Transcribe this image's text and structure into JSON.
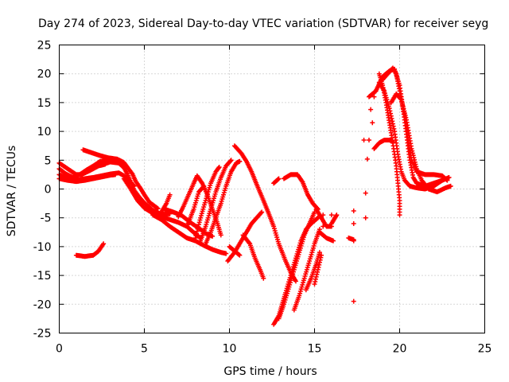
{
  "chart_data": {
    "type": "scatter",
    "title": "Day 274 of 2023, Sidereal Day-to-day VTEC variation (SDTVAR) for receiver seyg",
    "xlabel": "GPS time / hours",
    "ylabel": "SDTVAR / TECUs",
    "xlim": [
      0,
      25
    ],
    "ylim": [
      -25,
      25
    ],
    "xticks": [
      0,
      5,
      10,
      15,
      20,
      25
    ],
    "yticks": [
      -25,
      -20,
      -15,
      -10,
      -5,
      0,
      5,
      10,
      15,
      20,
      25
    ],
    "grid": true,
    "marker": "plus",
    "color": "#ff0000",
    "series_tracks": [
      [
        [
          0.0,
          4.5
        ],
        [
          0.5,
          3.5
        ],
        [
          1.0,
          2.5
        ],
        [
          1.3,
          2.5
        ],
        [
          1.8,
          3.2
        ],
        [
          2.3,
          4.0
        ],
        [
          2.7,
          4.3
        ]
      ],
      [
        [
          0.0,
          3.5
        ],
        [
          0.4,
          2.6
        ],
        [
          0.8,
          2.0
        ],
        [
          1.2,
          2.5
        ],
        [
          1.6,
          3.3
        ],
        [
          2.0,
          4.0
        ],
        [
          2.4,
          4.8
        ],
        [
          2.9,
          5.0
        ],
        [
          3.4,
          4.6
        ]
      ],
      [
        [
          1.4,
          6.8
        ],
        [
          1.9,
          6.3
        ],
        [
          2.4,
          5.8
        ],
        [
          2.9,
          5.4
        ],
        [
          3.4,
          5.2
        ],
        [
          3.8,
          4.6
        ],
        [
          4.0,
          3.8
        ],
        [
          4.3,
          2.6
        ],
        [
          4.5,
          1.3
        ],
        [
          4.8,
          0.0
        ],
        [
          5.0,
          -1.0
        ],
        [
          5.3,
          -2.3
        ],
        [
          5.8,
          -3.4
        ]
      ],
      [
        [
          0.0,
          2.5
        ],
        [
          0.5,
          1.8
        ],
        [
          1.0,
          1.5
        ],
        [
          1.5,
          1.8
        ],
        [
          2.0,
          2.0
        ],
        [
          2.5,
          2.3
        ],
        [
          3.0,
          2.6
        ],
        [
          3.5,
          2.8
        ],
        [
          3.8,
          2.3
        ],
        [
          4.1,
          1.5
        ],
        [
          4.4,
          0.5
        ]
      ],
      [
        [
          2.5,
          4.2
        ],
        [
          3.0,
          4.7
        ],
        [
          3.5,
          4.5
        ],
        [
          3.8,
          3.7
        ],
        [
          4.0,
          2.6
        ],
        [
          4.2,
          1.2
        ],
        [
          4.4,
          -0.2
        ],
        [
          4.7,
          -1.4
        ],
        [
          5.0,
          -2.4
        ],
        [
          5.5,
          -3.7
        ],
        [
          6.0,
          -4.4
        ],
        [
          6.5,
          -4.3
        ]
      ],
      [
        [
          0.0,
          1.8
        ],
        [
          0.5,
          1.5
        ],
        [
          1.0,
          1.3
        ],
        [
          1.5,
          1.5
        ],
        [
          2.0,
          1.8
        ],
        [
          2.5,
          2.1
        ],
        [
          3.0,
          2.4
        ],
        [
          3.3,
          2.5
        ]
      ],
      [
        [
          3.8,
          1.8
        ],
        [
          4.2,
          0.0
        ],
        [
          4.6,
          -2.0
        ],
        [
          5.0,
          -3.3
        ],
        [
          5.5,
          -4.2
        ],
        [
          6.0,
          -4.8
        ],
        [
          6.5,
          -5.3
        ],
        [
          7.0,
          -5.8
        ],
        [
          7.5,
          -6.5
        ],
        [
          8.0,
          -7.8
        ],
        [
          8.3,
          -8.5
        ]
      ],
      [
        [
          6.2,
          -3.5
        ],
        [
          6.7,
          -4.0
        ],
        [
          7.2,
          -4.6
        ],
        [
          7.7,
          -5.8
        ],
        [
          8.2,
          -6.8
        ],
        [
          8.6,
          -7.7
        ],
        [
          9.0,
          -8.2
        ]
      ],
      [
        [
          5.5,
          -4.5
        ],
        [
          6.0,
          -5.3
        ],
        [
          6.5,
          -6.5
        ],
        [
          7.0,
          -7.5
        ],
        [
          7.5,
          -8.5
        ],
        [
          8.0,
          -9.0
        ],
        [
          8.5,
          -9.8
        ],
        [
          9.0,
          -10.5
        ],
        [
          9.5,
          -11.0
        ],
        [
          9.8,
          -11.2
        ]
      ],
      [
        [
          6.0,
          -4.0
        ],
        [
          6.3,
          -2.5
        ],
        [
          6.5,
          -1.0
        ]
      ],
      [
        [
          1.0,
          -11.5
        ],
        [
          1.5,
          -11.7
        ],
        [
          2.0,
          -11.5
        ],
        [
          2.3,
          -10.8
        ],
        [
          2.6,
          -9.5
        ]
      ],
      [
        [
          7.0,
          -4.8
        ],
        [
          7.3,
          -3.0
        ],
        [
          7.6,
          -1.0
        ],
        [
          7.9,
          1.0
        ],
        [
          8.1,
          2.3
        ],
        [
          8.4,
          1.0
        ],
        [
          8.7,
          -1.0
        ],
        [
          9.0,
          -3.5
        ],
        [
          9.3,
          -6.0
        ],
        [
          9.5,
          -8.0
        ]
      ],
      [
        [
          7.5,
          -6.5
        ],
        [
          7.9,
          -3.5
        ],
        [
          8.2,
          -0.5
        ],
        [
          8.5,
          0.5
        ]
      ],
      [
        [
          8.0,
          -8.5
        ],
        [
          8.3,
          -5.0
        ],
        [
          8.6,
          -2.0
        ],
        [
          8.9,
          1.0
        ],
        [
          9.2,
          3.0
        ],
        [
          9.4,
          3.8
        ]
      ],
      [
        [
          8.3,
          -9.0
        ],
        [
          8.6,
          -6.5
        ],
        [
          8.9,
          -3.5
        ],
        [
          9.2,
          -0.5
        ],
        [
          9.5,
          2.0
        ],
        [
          9.8,
          4.0
        ],
        [
          10.1,
          5.0
        ]
      ],
      [
        [
          8.6,
          -9.5
        ],
        [
          8.9,
          -7.5
        ],
        [
          9.2,
          -5.0
        ],
        [
          9.5,
          -2.5
        ],
        [
          9.8,
          0.5
        ],
        [
          10.1,
          3.0
        ],
        [
          10.4,
          4.5
        ],
        [
          10.6,
          4.8
        ]
      ],
      [
        [
          10.3,
          7.5
        ],
        [
          10.7,
          6.2
        ],
        [
          11.0,
          4.8
        ],
        [
          11.3,
          3.0
        ],
        [
          11.6,
          0.8
        ],
        [
          12.0,
          -2.0
        ],
        [
          12.3,
          -4.2
        ],
        [
          12.6,
          -6.5
        ],
        [
          12.9,
          -9.5
        ],
        [
          13.3,
          -12.5
        ],
        [
          13.6,
          -14.5
        ],
        [
          13.9,
          -16.0
        ]
      ],
      [
        [
          9.9,
          -12.5
        ],
        [
          10.3,
          -11.0
        ],
        [
          10.6,
          -9.5
        ],
        [
          11.0,
          -7.5
        ],
        [
          11.3,
          -6.0
        ],
        [
          11.6,
          -5.0
        ],
        [
          11.9,
          -4.0
        ]
      ],
      [
        [
          10.8,
          -8.0
        ],
        [
          11.2,
          -9.5
        ],
        [
          11.5,
          -12.0
        ],
        [
          11.8,
          -14.0
        ],
        [
          12.0,
          -15.5
        ]
      ],
      [
        [
          10.0,
          -10.0
        ],
        [
          10.4,
          -11.0
        ],
        [
          10.6,
          -11.5
        ]
      ],
      [
        [
          12.6,
          -23.5
        ],
        [
          12.9,
          -22.0
        ],
        [
          13.1,
          -20.0
        ],
        [
          13.3,
          -18.0
        ],
        [
          13.6,
          -15.0
        ],
        [
          13.9,
          -12.0
        ],
        [
          14.2,
          -9.0
        ],
        [
          14.5,
          -7.0
        ],
        [
          14.8,
          -6.0
        ],
        [
          15.0,
          -5.5
        ],
        [
          15.2,
          -5.0
        ]
      ],
      [
        [
          12.9,
          -22.5
        ],
        [
          13.2,
          -20.0
        ],
        [
          13.5,
          -17.0
        ],
        [
          13.8,
          -14.0
        ],
        [
          14.1,
          -11.0
        ],
        [
          14.4,
          -8.0
        ],
        [
          14.7,
          -6.0
        ],
        [
          15.0,
          -4.0
        ]
      ],
      [
        [
          13.8,
          -21.0
        ],
        [
          14.1,
          -18.5
        ],
        [
          14.4,
          -15.5
        ],
        [
          14.7,
          -12.5
        ],
        [
          15.0,
          -9.5
        ],
        [
          15.3,
          -7.0
        ]
      ],
      [
        [
          13.2,
          1.8
        ],
        [
          13.6,
          2.5
        ],
        [
          14.0,
          2.5
        ],
        [
          14.3,
          1.2
        ],
        [
          14.6,
          -1.0
        ],
        [
          14.9,
          -2.5
        ],
        [
          15.2,
          -3.5
        ]
      ],
      [
        [
          12.6,
          1.0
        ],
        [
          12.9,
          1.8
        ]
      ],
      [
        [
          14.5,
          -17.5
        ],
        [
          14.8,
          -15.5
        ],
        [
          15.1,
          -13.0
        ],
        [
          15.3,
          -11.0
        ]
      ],
      [
        [
          15.0,
          -16.5
        ],
        [
          15.2,
          -14.0
        ],
        [
          15.4,
          -11.5
        ]
      ],
      [
        [
          15.1,
          -3.5
        ],
        [
          15.4,
          -5.0
        ],
        [
          15.7,
          -6.5
        ],
        [
          16.0,
          -6.5
        ]
      ],
      [
        [
          15.3,
          -7.5
        ],
        [
          15.7,
          -8.5
        ],
        [
          16.1,
          -9.0
        ]
      ],
      [
        [
          16.0,
          -6.0
        ],
        [
          16.2,
          -5.0
        ],
        [
          16.3,
          -4.5
        ]
      ],
      [
        [
          17.0,
          -8.5
        ],
        [
          17.3,
          -8.8
        ]
      ],
      [
        [
          18.8,
          20.0
        ],
        [
          19.0,
          18.0
        ],
        [
          19.2,
          15.0
        ],
        [
          19.4,
          11.5
        ],
        [
          19.6,
          8.0
        ],
        [
          19.8,
          4.0
        ],
        [
          19.9,
          1.0
        ],
        [
          20.0,
          -2.0
        ],
        [
          20.0,
          -4.5
        ]
      ],
      [
        [
          18.8,
          18.5
        ],
        [
          19.1,
          17.0
        ],
        [
          19.4,
          14.0
        ],
        [
          19.7,
          10.0
        ],
        [
          19.9,
          6.0
        ],
        [
          20.1,
          3.0
        ],
        [
          20.3,
          1.5
        ],
        [
          20.6,
          0.5
        ],
        [
          21.0,
          0.2
        ],
        [
          21.5,
          0.0
        ],
        [
          22.0,
          0.5
        ],
        [
          22.5,
          1.5
        ],
        [
          22.9,
          2.0
        ]
      ],
      [
        [
          18.6,
          17.0
        ],
        [
          19.0,
          19.5
        ],
        [
          19.4,
          20.5
        ],
        [
          19.7,
          20.8
        ],
        [
          20.0,
          18.0
        ],
        [
          20.2,
          14.0
        ],
        [
          20.4,
          9.5
        ],
        [
          20.6,
          5.0
        ],
        [
          20.8,
          2.0
        ],
        [
          21.0,
          1.0
        ],
        [
          21.5,
          0.5
        ],
        [
          22.0,
          1.0
        ],
        [
          22.5,
          1.5
        ]
      ],
      [
        [
          19.0,
          19.0
        ],
        [
          19.3,
          20.0
        ],
        [
          19.6,
          21.0
        ],
        [
          19.8,
          20.0
        ],
        [
          20.0,
          17.0
        ],
        [
          20.3,
          12.5
        ],
        [
          20.5,
          8.5
        ],
        [
          20.7,
          5.0
        ],
        [
          21.0,
          3.0
        ],
        [
          21.5,
          2.5
        ],
        [
          22.0,
          2.5
        ],
        [
          22.5,
          2.3
        ],
        [
          22.8,
          1.5
        ]
      ],
      [
        [
          19.5,
          15.0
        ],
        [
          19.8,
          16.5
        ],
        [
          20.1,
          15.5
        ],
        [
          20.4,
          12.0
        ],
        [
          20.7,
          7.0
        ],
        [
          21.0,
          3.5
        ],
        [
          21.3,
          1.5
        ],
        [
          21.7,
          0.0
        ],
        [
          22.2,
          -0.5
        ],
        [
          22.7,
          0.2
        ],
        [
          23.0,
          0.5
        ]
      ],
      [
        [
          18.5,
          7.0
        ],
        [
          18.8,
          8.0
        ],
        [
          19.1,
          8.5
        ],
        [
          19.4,
          8.5
        ],
        [
          19.6,
          8.2
        ]
      ],
      [
        [
          18.2,
          16.0
        ],
        [
          18.4,
          16.5
        ],
        [
          18.6,
          17.0
        ]
      ]
    ],
    "series_points": [
      [
        18.2,
        8.5
      ],
      [
        18.1,
        5.2
      ],
      [
        18.0,
        -0.7
      ],
      [
        18.0,
        -5.0
      ],
      [
        17.3,
        -3.8
      ],
      [
        17.3,
        -6.0
      ],
      [
        17.3,
        -9.0
      ],
      [
        17.3,
        -19.5
      ],
      [
        15.5,
        -6.5
      ],
      [
        15.5,
        -4.5
      ],
      [
        16.0,
        -4.5
      ],
      [
        17.9,
        8.5
      ],
      [
        18.4,
        11.5
      ],
      [
        18.3,
        13.8
      ],
      [
        18.5,
        16.0
      ]
    ]
  }
}
